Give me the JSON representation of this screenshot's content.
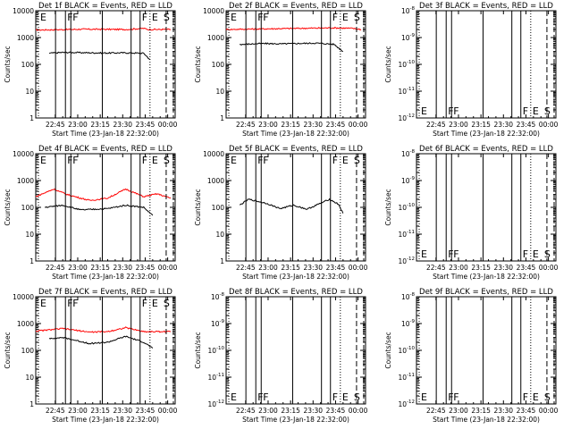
{
  "figure": {
    "x_tick_labels": [
      "22:45",
      "23:00",
      "23:15",
      "23:30",
      "23:45",
      "00:00"
    ],
    "xlabel": "Start Time (23-Jan-18 22:32:00)",
    "ylabel": "Counts/sec",
    "colors": {
      "events": "#000000",
      "lld": "#ff0000",
      "background": "#ffffff"
    },
    "vline_markers": [
      "E",
      "F",
      "F",
      "F",
      "E",
      "S"
    ]
  },
  "chart_data": [
    {
      "type": "line",
      "title": "Det 1f BLACK = Events, RED = LLD",
      "ylabel": "Counts/sec",
      "xlabel": "Start Time (23-Jan-18 22:32:00)",
      "x_units": "hours after 22:32 UT",
      "y_log": true,
      "ylim": [
        1,
        10000
      ],
      "y_tick_labels": [
        "1",
        "10",
        "100",
        "1000",
        "10000"
      ],
      "series": [
        {
          "color": "red",
          "x": [
            0.0,
            0.4,
            0.5,
            1.0,
            1.2,
            1.25,
            1.5
          ],
          "y": [
            1900,
            2000,
            2050,
            2000,
            2200,
            2000,
            2000
          ]
        },
        {
          "color": "black",
          "x": [
            0.15,
            0.3,
            0.6,
            0.8,
            1.0,
            1.2,
            1.27
          ],
          "y": [
            260,
            280,
            270,
            265,
            270,
            260,
            150
          ]
        }
      ],
      "vlines": [
        0.03,
        0.22,
        0.33,
        0.39,
        0.74,
        1.06,
        1.16,
        1.27,
        1.45,
        1.53
      ]
    },
    {
      "type": "line",
      "title": "Det 2f BLACK = Events, RED = LLD",
      "ylabel": "Counts/sec",
      "xlabel": "Start Time (23-Jan-18 22:32:00)",
      "x_units": "hours after 22:32 UT",
      "y_log": true,
      "ylim": [
        1,
        10000
      ],
      "y_tick_labels": [
        "1",
        "10",
        "100",
        "1000",
        "10000"
      ],
      "series": [
        {
          "color": "red",
          "x": [
            0.0,
            0.4,
            0.8,
            1.2,
            1.4,
            1.5
          ],
          "y": [
            2000,
            2100,
            2200,
            2300,
            2200,
            2000
          ]
        },
        {
          "color": "black",
          "x": [
            0.15,
            0.4,
            0.6,
            0.8,
            1.0,
            1.2,
            1.3
          ],
          "y": [
            550,
            600,
            580,
            600,
            620,
            560,
            300
          ]
        }
      ],
      "vlines": [
        0.03,
        0.22,
        0.33,
        0.39,
        0.74,
        1.06,
        1.16,
        1.27,
        1.45,
        1.53
      ]
    },
    {
      "type": "line",
      "title": "Det 3f BLACK = Events, RED = LLD",
      "ylabel": "Counts/sec",
      "xlabel": "Start Time (23-Jan-18 22:32:00)",
      "x_units": "hours after 22:32 UT",
      "y_log": true,
      "ylim": [
        1e-12,
        1e-08
      ],
      "y_tick_labels": [
        "10^-12",
        "10^-11",
        "10^-10",
        "10^-9",
        "10^-8"
      ],
      "series": [],
      "vlines": [
        0.03,
        0.22,
        0.33,
        0.39,
        0.74,
        1.06,
        1.16,
        1.27,
        1.45,
        1.53
      ]
    },
    {
      "type": "line",
      "title": "Det 4f BLACK = Events, RED = LLD",
      "ylabel": "Counts/sec",
      "xlabel": "Start Time (23-Jan-18 22:32:00)",
      "x_units": "hours after 22:32 UT",
      "y_log": true,
      "ylim": [
        1,
        10000
      ],
      "y_tick_labels": [
        "1",
        "10",
        "100",
        "1000",
        "10000"
      ],
      "series": [
        {
          "color": "red",
          "x": [
            0.0,
            0.2,
            0.35,
            0.6,
            0.8,
            1.0,
            1.2,
            1.35,
            1.5
          ],
          "y": [
            250,
            480,
            300,
            180,
            220,
            480,
            250,
            320,
            220
          ]
        },
        {
          "color": "black",
          "x": [
            0.1,
            0.3,
            0.5,
            0.8,
            1.0,
            1.2,
            1.3
          ],
          "y": [
            100,
            120,
            80,
            90,
            120,
            100,
            50
          ]
        }
      ],
      "vlines": [
        0.03,
        0.22,
        0.33,
        0.39,
        0.74,
        1.06,
        1.16,
        1.27,
        1.45,
        1.53
      ]
    },
    {
      "type": "line",
      "title": "Det 5f BLACK = Events, RED = LLD",
      "ylabel": "Counts/sec",
      "xlabel": "Start Time (23-Jan-18 22:32:00)",
      "x_units": "hours after 22:32 UT",
      "y_log": true,
      "ylim": [
        1,
        10000
      ],
      "y_tick_labels": [
        "1",
        "10",
        "100",
        "1000",
        "10000"
      ],
      "series": [
        {
          "color": "black",
          "x": [
            0.15,
            0.25,
            0.45,
            0.6,
            0.75,
            0.9,
            1.0,
            1.15,
            1.25,
            1.3
          ],
          "y": [
            120,
            200,
            140,
            90,
            120,
            85,
            120,
            200,
            130,
            60
          ]
        }
      ],
      "vlines": [
        0.03,
        0.22,
        0.33,
        0.39,
        0.74,
        1.06,
        1.16,
        1.27,
        1.45,
        1.53
      ]
    },
    {
      "type": "line",
      "title": "Det 6f BLACK = Events, RED = LLD",
      "ylabel": "Counts/sec",
      "xlabel": "Start Time (23-Jan-18 22:32:00)",
      "x_units": "hours after 22:32 UT",
      "y_log": true,
      "ylim": [
        1e-12,
        1e-08
      ],
      "y_tick_labels": [
        "10^-12",
        "10^-11",
        "10^-10",
        "10^-9",
        "10^-8"
      ],
      "series": [],
      "vlines": [
        0.03,
        0.22,
        0.33,
        0.39,
        0.74,
        1.06,
        1.16,
        1.27,
        1.45,
        1.53
      ]
    },
    {
      "type": "line",
      "title": "Det 7f BLACK = Events, RED = LLD",
      "ylabel": "Counts/sec",
      "xlabel": "Start Time (23-Jan-18 22:32:00)",
      "x_units": "hours after 22:32 UT",
      "y_log": true,
      "ylim": [
        1,
        10000
      ],
      "y_tick_labels": [
        "1",
        "10",
        "100",
        "1000",
        "10000"
      ],
      "series": [
        {
          "color": "red",
          "x": [
            0.0,
            0.3,
            0.6,
            0.8,
            1.0,
            1.2,
            1.5
          ],
          "y": [
            520,
            650,
            480,
            500,
            700,
            500,
            500
          ]
        },
        {
          "color": "black",
          "x": [
            0.15,
            0.3,
            0.6,
            0.8,
            1.0,
            1.2,
            1.3
          ],
          "y": [
            280,
            300,
            180,
            200,
            330,
            200,
            120
          ]
        }
      ],
      "vlines": [
        0.03,
        0.22,
        0.33,
        0.39,
        0.74,
        1.06,
        1.16,
        1.27,
        1.45,
        1.53
      ]
    },
    {
      "type": "line",
      "title": "Det 8f BLACK = Events, RED = LLD",
      "ylabel": "Counts/sec",
      "xlabel": "Start Time (23-Jan-18 22:32:00)",
      "x_units": "hours after 22:32 UT",
      "y_log": true,
      "ylim": [
        1e-12,
        1e-08
      ],
      "y_tick_labels": [
        "10^-12",
        "10^-11",
        "10^-10",
        "10^-9",
        "10^-8"
      ],
      "series": [],
      "vlines": [
        0.03,
        0.22,
        0.33,
        0.39,
        0.74,
        1.06,
        1.16,
        1.27,
        1.45,
        1.53
      ]
    },
    {
      "type": "line",
      "title": "Det 9f BLACK = Events, RED = LLD",
      "ylabel": "Counts/sec",
      "xlabel": "Start Time (23-Jan-18 22:32:00)",
      "x_units": "hours after 22:32 UT",
      "y_log": true,
      "ylim": [
        1e-12,
        1e-08
      ],
      "y_tick_labels": [
        "10^-12",
        "10^-11",
        "10^-10",
        "10^-9",
        "10^-8"
      ],
      "series": [],
      "vlines": [
        0.03,
        0.22,
        0.33,
        0.39,
        0.74,
        1.06,
        1.16,
        1.27,
        1.45,
        1.53
      ]
    }
  ]
}
